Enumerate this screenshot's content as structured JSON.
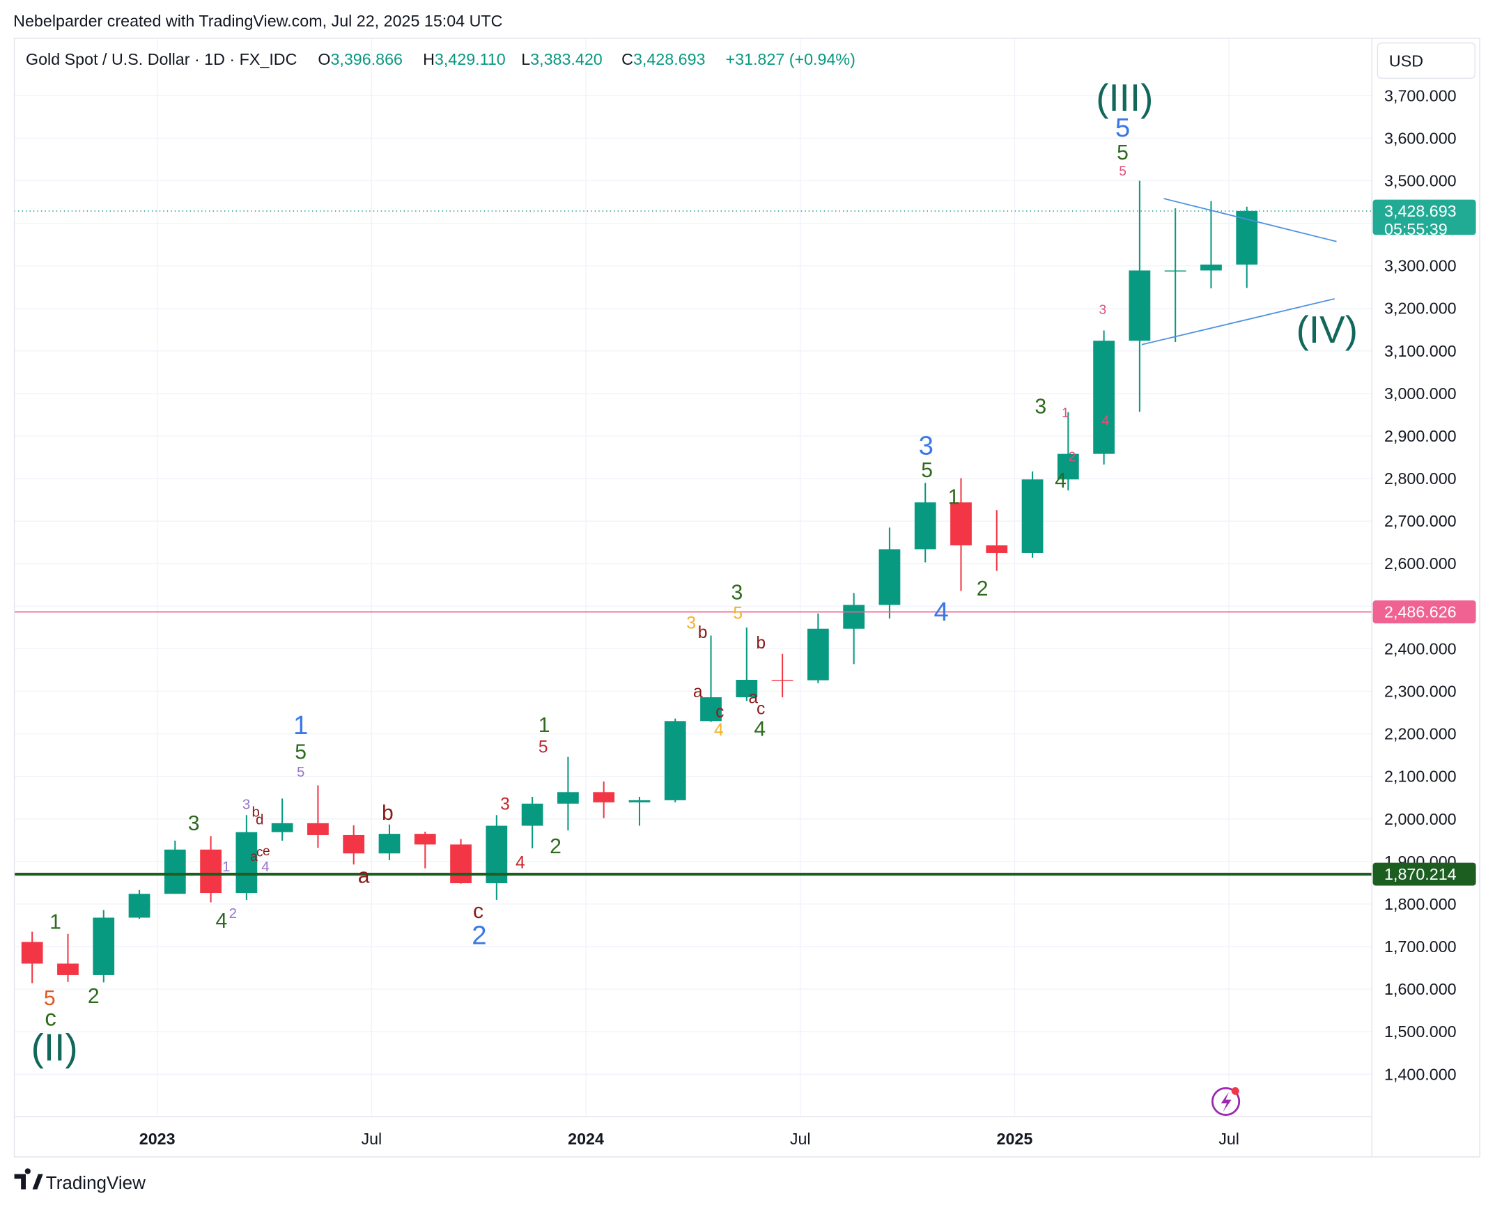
{
  "header": "Nebelparder created with TradingView.com, Jul 22, 2025 15:04 UTC",
  "legend": {
    "symbol": "Gold Spot / U.S. Dollar · 1D · FX_IDC",
    "open_label": "O",
    "open": "3,396.866",
    "high_label": "H",
    "high": "3,429.110",
    "low_label": "L",
    "low": "3,383.420",
    "close_label": "C",
    "close": "3,428.693",
    "change": "+31.827 (+0.94%)"
  },
  "currency": "USD",
  "countdown": "05:55:39",
  "footer": "TradingView",
  "chart_data": {
    "type": "candlestick",
    "grid": true,
    "up_color": "#089981",
    "down_color": "#f23645",
    "x": [
      "2022-09",
      "2022-10",
      "2022-11",
      "2022-12",
      "2023-01",
      "2023-02",
      "2023-03",
      "2023-04",
      "2023-05",
      "2023-06",
      "2023-07",
      "2023-08",
      "2023-09",
      "2023-10",
      "2023-11",
      "2023-12",
      "2024-01",
      "2024-02",
      "2024-03",
      "2024-04",
      "2024-05",
      "2024-06",
      "2024-07",
      "2024-08",
      "2024-09",
      "2024-10",
      "2024-11",
      "2024-12",
      "2025-01",
      "2025-02",
      "2025-03",
      "2025-04",
      "2025-05",
      "2025-06",
      "2025-07"
    ],
    "open": [
      1711,
      1660,
      1633,
      1768,
      1824,
      1928,
      1826,
      1969,
      1990,
      1962,
      1919,
      1965,
      1940,
      1849,
      1984,
      2036,
      2063,
      2039,
      2044,
      2230,
      2286,
      2327,
      2326,
      2447,
      2503,
      2634,
      2744,
      2643,
      2625,
      2798,
      2858,
      3124,
      3289,
      3289,
      3303
    ],
    "high": [
      1735,
      1730,
      1786,
      1833,
      1949,
      1960,
      2009,
      2048,
      2079,
      1985,
      1987,
      1970,
      1953,
      2009,
      2052,
      2146,
      2088,
      2052,
      2236,
      2431,
      2450,
      2388,
      2483,
      2531,
      2685,
      2790,
      2801,
      2726,
      2817,
      2956,
      3148,
      3500,
      3435,
      3452,
      3439
    ],
    "low": [
      1614,
      1617,
      1616,
      1765,
      1824,
      1804,
      1810,
      1949,
      1932,
      1893,
      1903,
      1884,
      1848,
      1810,
      1931,
      1973,
      2002,
      1984,
      2039,
      2228,
      2277,
      2286,
      2319,
      2364,
      2471,
      2603,
      2536,
      2583,
      2614,
      2772,
      2833,
      2957,
      3121,
      3247,
      3248
    ],
    "close": [
      1660,
      1633,
      1768,
      1824,
      1928,
      1826,
      1969,
      1990,
      1962,
      1919,
      1965,
      1940,
      1849,
      1984,
      2036,
      2063,
      2039,
      2044,
      2230,
      2286,
      2327,
      2326,
      2447,
      2503,
      2634,
      2744,
      2643,
      2625,
      2798,
      2858,
      3124,
      3289,
      3289,
      3303,
      3429
    ],
    "xlim": [
      "2022-09",
      "2025-11"
    ],
    "xticks": [
      {
        "value": "2023-01",
        "label": "2023"
      },
      {
        "value": "2023-07",
        "label": "Jul"
      },
      {
        "value": "2024-01",
        "label": "2024"
      },
      {
        "value": "2024-07",
        "label": "Jul"
      },
      {
        "value": "2025-01",
        "label": "2025"
      },
      {
        "value": "2025-07",
        "label": "Jul"
      }
    ],
    "ylim": [
      1300,
      3835
    ],
    "yticks": [
      {
        "value": 1400,
        "label": "1,400.000"
      },
      {
        "value": 1500,
        "label": "1,500.000"
      },
      {
        "value": 1600,
        "label": "1,600.000"
      },
      {
        "value": 1700,
        "label": "1,700.000"
      },
      {
        "value": 1800,
        "label": "1,800.000"
      },
      {
        "value": 1900,
        "label": "1,900.000"
      },
      {
        "value": 2000,
        "label": "2,000.000"
      },
      {
        "value": 2100,
        "label": "2,100.000"
      },
      {
        "value": 2200,
        "label": "2,200.000"
      },
      {
        "value": 2300,
        "label": "2,300.000"
      },
      {
        "value": 2400,
        "label": "2,400.000"
      },
      {
        "value": 2500,
        "label": "2,500.000"
      },
      {
        "value": 2600,
        "label": "2,600.000"
      },
      {
        "value": 2700,
        "label": "2,700.000"
      },
      {
        "value": 2800,
        "label": "2,800.000"
      },
      {
        "value": 2900,
        "label": "2,900.000"
      },
      {
        "value": 3000,
        "label": "3,000.000"
      },
      {
        "value": 3100,
        "label": "3,100.000"
      },
      {
        "value": 3200,
        "label": "3,200.000"
      },
      {
        "value": 3300,
        "label": "3,300.000"
      },
      {
        "value": 3400,
        "label": "3,400.000"
      },
      {
        "value": 3500,
        "label": "3,500.000"
      },
      {
        "value": 3600,
        "label": "3,600.000"
      },
      {
        "value": 3700,
        "label": "3,700.000"
      }
    ],
    "hlines": [
      {
        "value": 3428.693,
        "label": "3,428.693",
        "color": "#22ab94",
        "style": "dotted"
      },
      {
        "value": 2486.626,
        "label": "2,486.626",
        "color": "#f06292",
        "style": "solid"
      },
      {
        "value": 1870.214,
        "label": "1,870.214",
        "color": "#1b5e20",
        "style": "thick"
      }
    ],
    "annotations": [
      {
        "text": "(II)",
        "color": "#10675a"
      },
      {
        "text": "c",
        "color": "#2e6b1f"
      },
      {
        "text": "5",
        "color": "#e2571e"
      },
      {
        "text": "1",
        "color": "#2e6b1f"
      },
      {
        "text": "2",
        "color": "#2e6b1f"
      },
      {
        "text": "3",
        "color": "#2e6b1f"
      },
      {
        "text": "4",
        "color": "#2e6b1f"
      },
      {
        "text": "2",
        "color": "#9575cd"
      },
      {
        "text": "1",
        "color": "#9575cd"
      },
      {
        "text": "4",
        "color": "#9575cd"
      },
      {
        "text": "a",
        "color": "#8b1a1a"
      },
      {
        "text": "c",
        "color": "#8b1a1a"
      },
      {
        "text": "e",
        "color": "#8b1a1a"
      },
      {
        "text": "3",
        "color": "#9575cd"
      },
      {
        "text": "b",
        "color": "#8b1a1a"
      },
      {
        "text": "d",
        "color": "#8b1a1a"
      },
      {
        "text": "1",
        "color": "#3b78e7"
      },
      {
        "text": "5",
        "color": "#2e6b1f"
      },
      {
        "text": "5",
        "color": "#9575cd"
      },
      {
        "text": "b",
        "color": "#8b1a1a"
      },
      {
        "text": "a",
        "color": "#8b1a1a"
      },
      {
        "text": "c",
        "color": "#8b1a1a"
      },
      {
        "text": "2",
        "color": "#3b78e7"
      },
      {
        "text": "3",
        "color": "#c2272d"
      },
      {
        "text": "4",
        "color": "#c2272d"
      },
      {
        "text": "2",
        "color": "#2e6b1f"
      },
      {
        "text": "1",
        "color": "#2e6b1f"
      },
      {
        "text": "5",
        "color": "#c2272d"
      },
      {
        "text": "3",
        "color": "#f6b128"
      },
      {
        "text": "b",
        "color": "#8b1a1a"
      },
      {
        "text": "a",
        "color": "#8b1a1a"
      },
      {
        "text": "c",
        "color": "#8b1a1a"
      },
      {
        "text": "4",
        "color": "#f6b128"
      },
      {
        "text": "3",
        "color": "#2e6b1f"
      },
      {
        "text": "5",
        "color": "#f6b128"
      },
      {
        "text": "b",
        "color": "#8b1a1a"
      },
      {
        "text": "a",
        "color": "#8b1a1a"
      },
      {
        "text": "c",
        "color": "#8b1a1a"
      },
      {
        "text": "4",
        "color": "#2e6b1f"
      },
      {
        "text": "3",
        "color": "#3b78e7"
      },
      {
        "text": "5",
        "color": "#2e6b1f"
      },
      {
        "text": "1",
        "color": "#2e6b1f"
      },
      {
        "text": "4",
        "color": "#3b78e7"
      },
      {
        "text": "2",
        "color": "#2e6b1f"
      },
      {
        "text": "3",
        "color": "#2e6b1f"
      },
      {
        "text": "1",
        "color": "#e0507a"
      },
      {
        "text": "2",
        "color": "#e0507a"
      },
      {
        "text": "4",
        "color": "#2e6b1f"
      },
      {
        "text": "3",
        "color": "#e0507a"
      },
      {
        "text": "4",
        "color": "#e0507a"
      },
      {
        "text": "5",
        "color": "#e0507a"
      },
      {
        "text": "5",
        "color": "#2e6b1f"
      },
      {
        "text": "5",
        "color": "#3b78e7"
      },
      {
        "text": "(III)",
        "color": "#10675a"
      },
      {
        "text": "(IV)",
        "color": "#10675a"
      }
    ]
  }
}
